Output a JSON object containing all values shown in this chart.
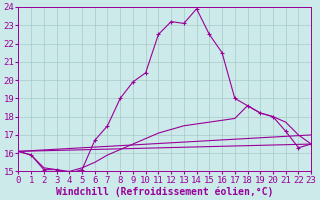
{
  "xlabel": "Windchill (Refroidissement éolien,°C)",
  "background_color": "#cdeaea",
  "line_color": "#990099",
  "grid_color": "#a0bfbf",
  "xlim": [
    0,
    23
  ],
  "ylim": [
    15,
    24
  ],
  "xticks": [
    0,
    1,
    2,
    3,
    4,
    5,
    6,
    7,
    8,
    9,
    10,
    11,
    12,
    13,
    14,
    15,
    16,
    17,
    18,
    19,
    20,
    21,
    22,
    23
  ],
  "yticks": [
    15,
    16,
    17,
    18,
    19,
    20,
    21,
    22,
    23,
    24
  ],
  "main_curve_x": [
    0,
    1,
    2,
    3,
    4,
    5,
    6,
    7,
    8,
    9,
    10,
    11,
    12,
    13,
    14,
    15,
    16,
    17,
    18,
    19,
    20,
    21,
    22,
    23
  ],
  "main_curve_y": [
    16.1,
    15.9,
    15.1,
    15.1,
    14.9,
    15.1,
    16.7,
    17.5,
    19.0,
    19.9,
    20.4,
    22.5,
    23.2,
    23.1,
    23.9,
    22.5,
    21.5,
    19.0,
    18.6,
    18.2,
    18.0,
    17.2,
    16.3,
    16.5
  ],
  "fan_line1": [
    [
      0,
      16.1
    ],
    [
      23,
      16.5
    ]
  ],
  "fan_line2": [
    [
      0,
      16.1
    ],
    [
      23,
      17.0
    ]
  ],
  "fan_curve_x": [
    0,
    1,
    2,
    3,
    4,
    5,
    6,
    7,
    8,
    9,
    10,
    11,
    12,
    13,
    14,
    15,
    16,
    17,
    18,
    19,
    20,
    21,
    22,
    23
  ],
  "fan_curve_y": [
    16.1,
    15.9,
    15.2,
    15.1,
    15.0,
    15.2,
    15.5,
    15.9,
    16.2,
    16.5,
    16.8,
    17.1,
    17.3,
    17.5,
    17.6,
    17.7,
    17.8,
    17.9,
    18.6,
    18.2,
    18.0,
    17.7,
    17.0,
    16.5
  ],
  "tick_fontsize": 6.5,
  "xlabel_fontsize": 7,
  "figsize": [
    3.2,
    2.0
  ],
  "dpi": 100
}
